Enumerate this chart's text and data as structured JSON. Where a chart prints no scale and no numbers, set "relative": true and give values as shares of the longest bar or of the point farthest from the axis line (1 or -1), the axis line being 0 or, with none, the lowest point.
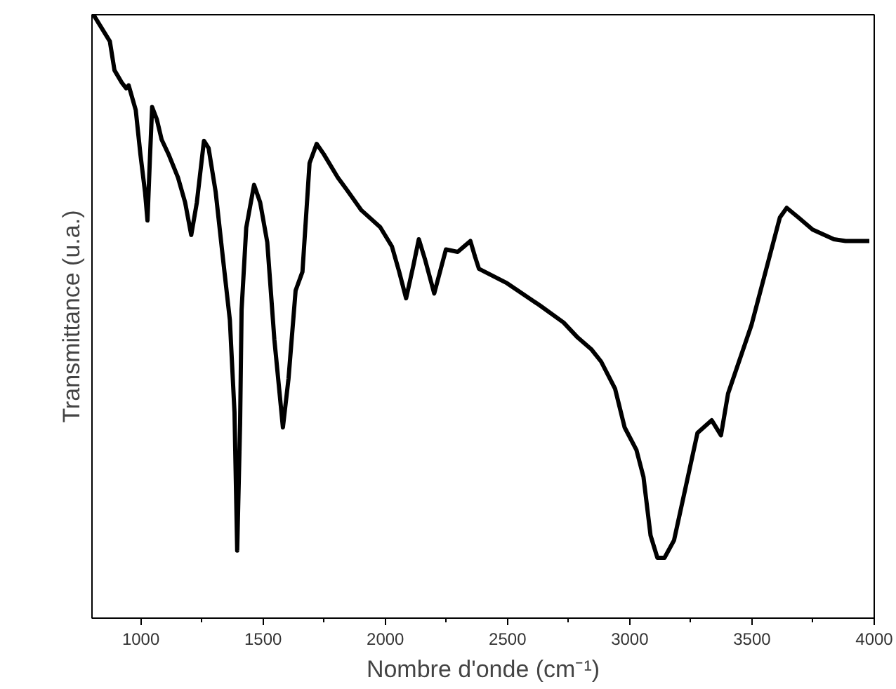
{
  "chart_data": {
    "type": "line",
    "xlabel": "Nombre d'onde (cm⁻¹)",
    "ylabel": "Transmittance (u.a.)",
    "relative": true,
    "xlim": [
      800,
      4000
    ],
    "xticks": [
      1000,
      {
        "value": 1250,
        "label": null
      },
      1500,
      {
        "value": 1750,
        "label": null
      },
      2000,
      {
        "value": 2250,
        "label": null
      },
      2500,
      {
        "value": 2750,
        "label": null
      },
      3000,
      {
        "value": 3250,
        "label": null
      },
      3500,
      {
        "value": 3750,
        "label": null
      },
      4000
    ],
    "grid": false,
    "marker": "none",
    "line_style": "solid",
    "series": [
      {
        "color": "#000000",
        "x": [
          806,
          873,
          892,
          921,
          940,
          950,
          979,
          998,
          1017,
          1027,
          1037,
          1046,
          1065,
          1085,
          1113,
          1152,
          1181,
          1206,
          1229,
          1258,
          1277,
          1306,
          1335,
          1364,
          1383,
          1394,
          1406,
          1412,
          1431,
          1463,
          1488,
          1517,
          1546,
          1581,
          1604,
          1633,
          1661,
          1690,
          1719,
          1748,
          1806,
          1844,
          1902,
          1979,
          2027,
          2056,
          2085,
          2114,
          2137,
          2162,
          2200,
          2248,
          2296,
          2325,
          2348,
          2367,
          2383,
          2498,
          2633,
          2729,
          2787,
          2844,
          2883,
          2940,
          2979,
          3027,
          3056,
          3085,
          3113,
          3142,
          3181,
          3229,
          3277,
          3335,
          3373,
          3402,
          3450,
          3498,
          3556,
          3614,
          3642,
          3690,
          3748,
          3835,
          3883,
          3980
        ],
        "values": [
          1.0,
          0.956,
          0.908,
          0.888,
          0.878,
          0.883,
          0.842,
          0.769,
          0.706,
          0.659,
          0.762,
          0.847,
          0.827,
          0.793,
          0.769,
          0.73,
          0.689,
          0.635,
          0.689,
          0.791,
          0.779,
          0.706,
          0.599,
          0.494,
          0.341,
          0.112,
          0.324,
          0.511,
          0.647,
          0.718,
          0.689,
          0.623,
          0.462,
          0.316,
          0.397,
          0.543,
          0.574,
          0.754,
          0.786,
          0.769,
          0.73,
          0.709,
          0.676,
          0.648,
          0.616,
          0.575,
          0.53,
          0.583,
          0.628,
          0.595,
          0.538,
          0.611,
          0.607,
          0.617,
          0.625,
          0.599,
          0.579,
          0.555,
          0.518,
          0.49,
          0.465,
          0.445,
          0.425,
          0.38,
          0.316,
          0.279,
          0.234,
          0.137,
          0.1,
          0.1,
          0.129,
          0.218,
          0.307,
          0.328,
          0.303,
          0.372,
          0.429,
          0.486,
          0.575,
          0.664,
          0.68,
          0.664,
          0.644,
          0.628,
          0.625,
          0.625
        ]
      }
    ]
  }
}
